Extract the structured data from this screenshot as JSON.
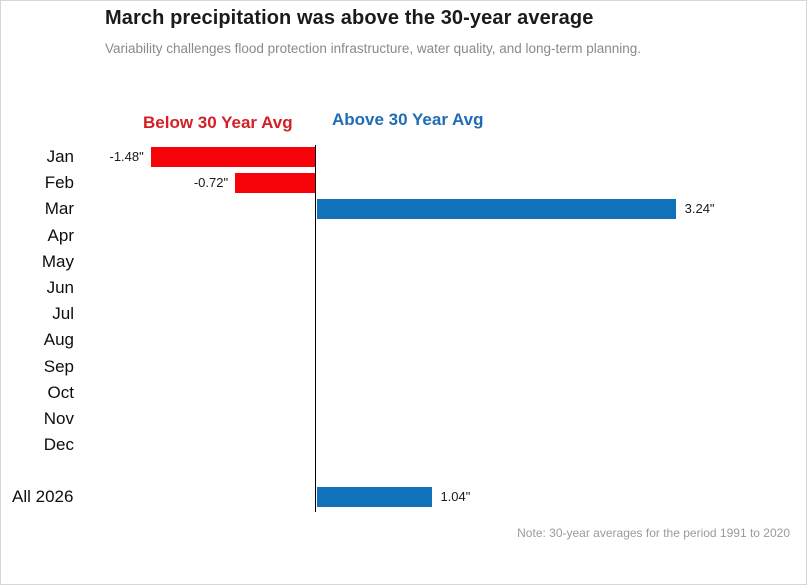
{
  "header": {
    "title": "March precipitation was above the 30-year average",
    "subtitle": "Variability challenges flood protection infrastructure, water quality, and long-term planning."
  },
  "legend": {
    "below_label": "Below 30 Year Avg",
    "above_label": "Above 30 Year Avg",
    "below_color": "#d31f26",
    "above_color": "#1f6db4"
  },
  "chart_data": {
    "type": "bar",
    "orientation": "horizontal-diverging",
    "title": "March precipitation was above the 30-year average",
    "subtitle": "Variability challenges flood protection infrastructure, water quality, and long-term planning.",
    "unit": "inches deviation from 30-year average",
    "categories": [
      "Jan",
      "Feb",
      "Mar",
      "Apr",
      "May",
      "Jun",
      "Jul",
      "Aug",
      "Sep",
      "Oct",
      "Nov",
      "Dec",
      "All 2026"
    ],
    "values": [
      -1.48,
      -0.72,
      3.24,
      null,
      null,
      null,
      null,
      null,
      null,
      null,
      null,
      null,
      1.04
    ],
    "value_labels": [
      "-1.48\"",
      "-0.72\"",
      "3.24\"",
      "",
      "",
      "",
      "",
      "",
      "",
      "",
      "",
      "",
      "1.04\""
    ],
    "negative_color": "#f6040a",
    "positive_color": "#1072ba",
    "axis_baseline": 0,
    "xlim": [
      -1.9,
      4.4
    ],
    "grid": "off",
    "legend_position": "top",
    "note": "Note: 30-year averages for the period 1991 to 2020"
  }
}
